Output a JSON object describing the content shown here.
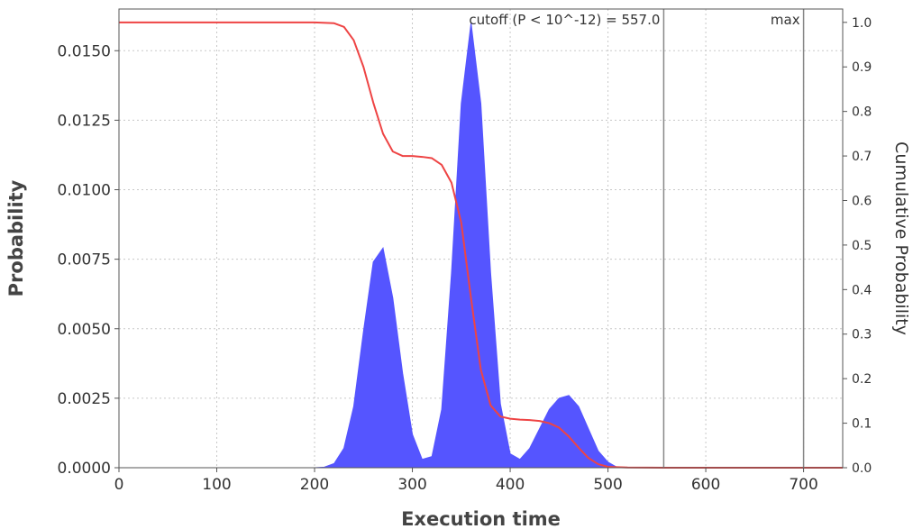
{
  "chart_data": {
    "type": "area",
    "title": "",
    "xlabel": "Execution time",
    "ylabel": "Probability",
    "y2label": "Cumulative Probability",
    "xlim": [
      0,
      740
    ],
    "ylim": [
      0,
      0.0165
    ],
    "y2lim": [
      0,
      1.03
    ],
    "xticks": [
      0,
      100,
      200,
      300,
      400,
      500,
      600,
      700
    ],
    "yticks": [
      0.0,
      0.0025,
      0.005,
      0.0075,
      0.01,
      0.0125,
      0.015
    ],
    "ytick_labels": [
      "0.0000",
      "0.0025",
      "0.0050",
      "0.0075",
      "0.0100",
      "0.0125",
      "0.0150"
    ],
    "y2ticks": [
      0.0,
      0.1,
      0.2,
      0.3,
      0.4,
      0.5,
      0.6,
      0.7,
      0.8,
      0.9,
      1.0
    ],
    "y2tick_labels": [
      "0.0",
      "0.1",
      "0.2",
      "0.3",
      "0.4",
      "0.5",
      "0.6",
      "0.7",
      "0.8",
      "0.9",
      "1.0"
    ],
    "grid": true,
    "series": [
      {
        "kind": "area",
        "axis": "left",
        "color": "#5555ff",
        "x": [
          200,
          210,
          220,
          230,
          240,
          250,
          260,
          270,
          280,
          290,
          300,
          310,
          320,
          330,
          340,
          350,
          360,
          370,
          380,
          390,
          400,
          410,
          420,
          430,
          440,
          450,
          460,
          470,
          480,
          490,
          500,
          510
        ],
        "y": [
          0.0,
          2e-05,
          0.00015,
          0.0007,
          0.0022,
          0.0049,
          0.0074,
          0.0079,
          0.0061,
          0.0034,
          0.0012,
          0.0003,
          0.0004,
          0.0021,
          0.007,
          0.0131,
          0.016,
          0.0131,
          0.007,
          0.0023,
          0.0005,
          0.0003,
          0.0007,
          0.0014,
          0.0021,
          0.0025,
          0.0026,
          0.0022,
          0.0014,
          0.0006,
          0.0002,
          0.0
        ]
      },
      {
        "kind": "line",
        "axis": "right",
        "color": "#ee4444",
        "x": [
          0,
          200,
          220,
          230,
          240,
          250,
          260,
          270,
          280,
          290,
          300,
          310,
          320,
          330,
          340,
          350,
          360,
          370,
          380,
          390,
          400,
          410,
          420,
          430,
          440,
          450,
          460,
          470,
          480,
          490,
          500,
          520,
          560,
          740
        ],
        "y": [
          1.0,
          1.0,
          0.998,
          0.99,
          0.96,
          0.9,
          0.82,
          0.75,
          0.71,
          0.7,
          0.7,
          0.698,
          0.695,
          0.68,
          0.64,
          0.55,
          0.38,
          0.22,
          0.14,
          0.115,
          0.11,
          0.108,
          0.107,
          0.105,
          0.1,
          0.09,
          0.07,
          0.045,
          0.022,
          0.008,
          0.002,
          0.0005,
          0.0,
          0.0
        ]
      }
    ],
    "markers": [
      {
        "x": 557.0,
        "label": "cutoff (P < 10^-12) = 557.0"
      },
      {
        "x": 700,
        "label": "max"
      }
    ]
  }
}
